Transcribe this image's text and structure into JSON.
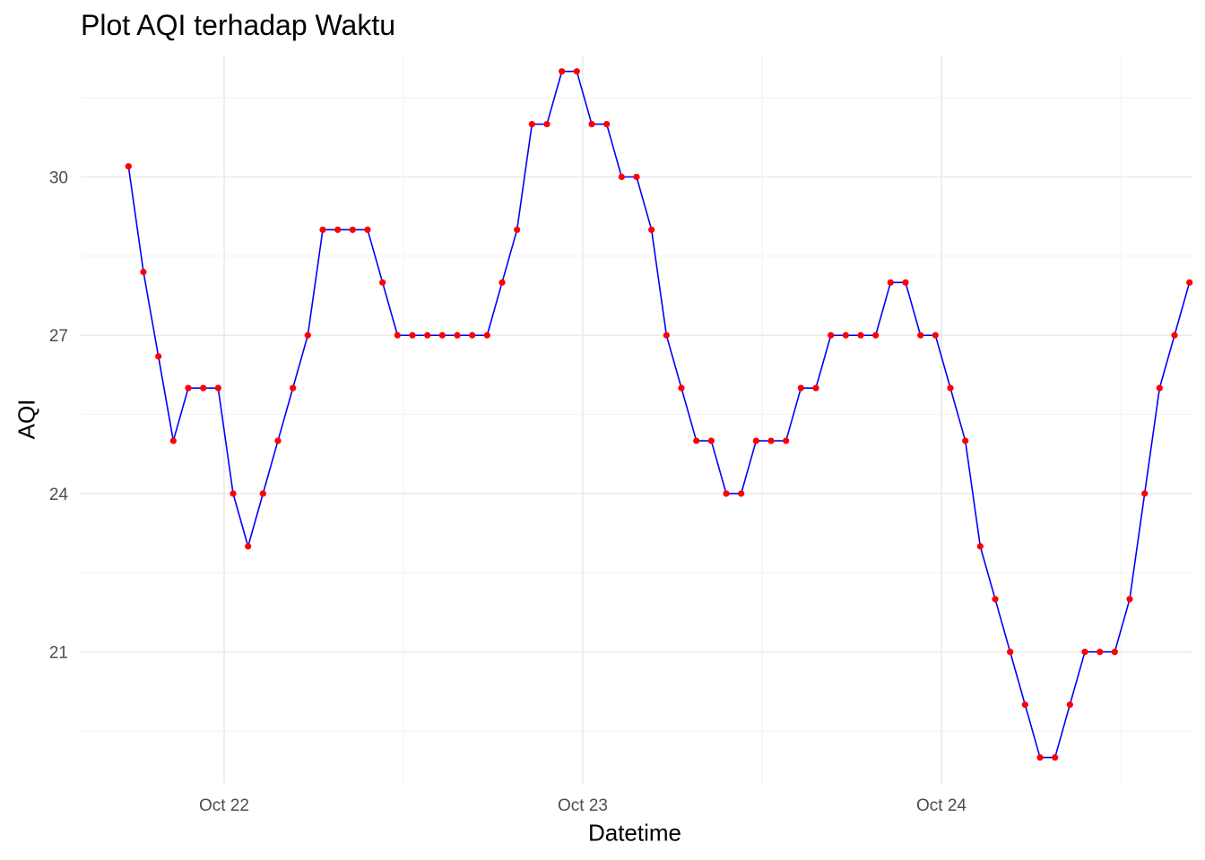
{
  "chart_data": {
    "type": "line",
    "title": "Plot AQI terhadap Waktu",
    "xlabel": "Datetime",
    "ylabel": "AQI",
    "x_ticks": [
      {
        "label": "Oct 22",
        "day": 22
      },
      {
        "label": "Oct 23",
        "day": 23
      },
      {
        "label": "Oct 24",
        "day": 24
      }
    ],
    "y_ticks": [
      21,
      24,
      27,
      30
    ],
    "xlim_day": [
      21.6,
      24.7
    ],
    "ylim": [
      18.5,
      32.3
    ],
    "grid": true,
    "series": [
      {
        "line_color": "#0000ff",
        "point_color": "#ff0000",
        "x_day": [
          21.7333,
          21.775,
          21.8167,
          21.8583,
          21.9,
          21.9417,
          21.9833,
          22.025,
          22.0667,
          22.1083,
          22.15,
          22.1917,
          22.2333,
          22.275,
          22.3167,
          22.3583,
          22.4,
          22.4417,
          22.4833,
          22.525,
          22.5667,
          22.6083,
          22.65,
          22.6917,
          22.7333,
          22.775,
          22.8167,
          22.8583,
          22.9,
          22.9417,
          22.9833,
          23.025,
          23.0667,
          23.1083,
          23.15,
          23.1917,
          23.2333,
          23.275,
          23.3167,
          23.3583,
          23.4,
          23.4417,
          23.4833,
          23.525,
          23.5667,
          23.6083,
          23.65,
          23.6917,
          23.7333,
          23.775,
          23.8167,
          23.8583,
          23.9,
          23.9417,
          23.9833,
          24.025,
          24.0667,
          24.1083,
          24.15,
          24.1917,
          24.2333,
          24.275,
          24.3167,
          24.3583,
          24.4,
          24.4417,
          24.4833,
          24.525,
          24.5667,
          24.6083,
          24.65,
          24.6917
        ],
        "aqi": [
          30.2,
          28.2,
          26.6,
          25,
          26,
          26,
          26,
          24,
          23,
          24,
          25,
          26,
          27,
          29,
          29,
          29,
          29,
          28,
          27,
          27,
          27,
          27,
          27,
          27,
          27,
          28,
          29,
          31,
          31,
          32,
          32,
          31,
          31,
          30,
          30,
          29,
          27,
          26,
          25,
          25,
          24,
          24,
          25,
          25,
          25,
          26,
          26,
          27,
          27,
          27,
          27,
          28,
          28,
          27,
          27,
          26,
          25,
          23,
          22,
          21,
          20,
          19,
          19,
          20,
          21,
          21,
          21,
          22,
          24,
          26,
          27,
          28
        ]
      }
    ]
  }
}
